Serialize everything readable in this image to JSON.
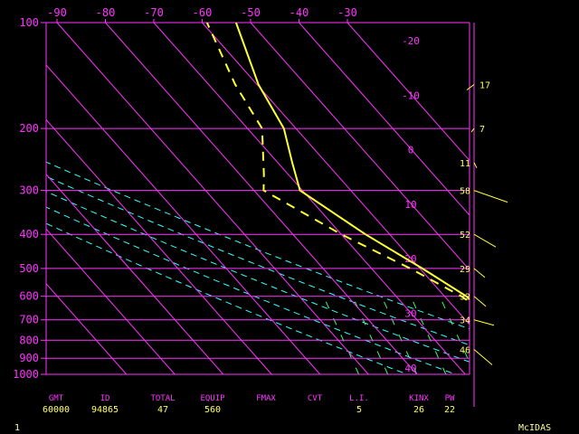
{
  "chart_data": {
    "type": "line",
    "title": "",
    "xlabel": "",
    "ylabel": "",
    "x_ticks": [
      "-90",
      "-80",
      "-70",
      "-60",
      "-50",
      "-40",
      "-30"
    ],
    "y_ticks": [
      "100",
      "200",
      "300",
      "400",
      "500",
      "600",
      "700",
      "800",
      "900",
      "1000"
    ],
    "isotherm_labels": [
      "-20",
      "-10",
      "0",
      "10",
      "20",
      "30",
      "40"
    ],
    "series": [
      {
        "id": "temperature",
        "style": "solid",
        "color": "#ffff33",
        "points": [
          {
            "p": 1000,
            "t": -51
          },
          {
            "p": 900,
            "t": -53
          },
          {
            "p": 800,
            "t": -52.8
          },
          {
            "p": 700,
            "t": -53.5
          },
          {
            "p": 600,
            "t": -55.5
          },
          {
            "p": 500,
            "t": -59.5
          },
          {
            "p": 400,
            "t": -65
          },
          {
            "p": 300,
            "t": -70.5
          },
          {
            "p": 250,
            "t": -67
          },
          {
            "p": 200,
            "t": -62.5
          },
          {
            "p": 150,
            "t": -59.7
          },
          {
            "p": 100,
            "t": -53
          }
        ]
      },
      {
        "id": "dewpoint",
        "style": "dashed",
        "color": "#ffff33",
        "points": [
          {
            "p": 1000,
            "t": -52
          },
          {
            "p": 900,
            "t": -53.5
          },
          {
            "p": 800,
            "t": -53.3
          },
          {
            "p": 700,
            "t": -54
          },
          {
            "p": 600,
            "t": -56.5
          },
          {
            "p": 500,
            "t": -62
          },
          {
            "p": 400,
            "t": -70
          },
          {
            "p": 300,
            "t": -78
          },
          {
            "p": 270,
            "t": -75
          },
          {
            "p": 200,
            "t": -67
          },
          {
            "p": 150,
            "t": -64.5
          },
          {
            "p": 100,
            "t": -59
          }
        ]
      }
    ],
    "winds": [
      {
        "label": "17",
        "p": 150
      },
      {
        "label": "7",
        "p": 200
      },
      {
        "label": "11",
        "p": 250
      },
      {
        "label": "58",
        "p": 300
      },
      {
        "label": "52",
        "p": 400
      },
      {
        "label": "29",
        "p": 500
      },
      {
        "label": "32",
        "p": 600
      },
      {
        "label": "34",
        "p": 700
      },
      {
        "label": "46",
        "p": 850
      }
    ],
    "colors": {
      "axes": "#ff33ff",
      "profile": "#ffff33",
      "dry_adiabat": "#33ffff",
      "mixing_ratio": "#33ff66"
    }
  },
  "indices": {
    "headers": [
      "GMT",
      "ID",
      "TOTAL",
      "EQUIP",
      "FMAX",
      "CVT",
      "L.I.",
      "KINX",
      "PW"
    ],
    "values": [
      "60000",
      "94865",
      "47",
      "560",
      "",
      "",
      "5",
      "26",
      "22"
    ]
  },
  "footer": {
    "page": "1",
    "brand": "McIDAS"
  }
}
